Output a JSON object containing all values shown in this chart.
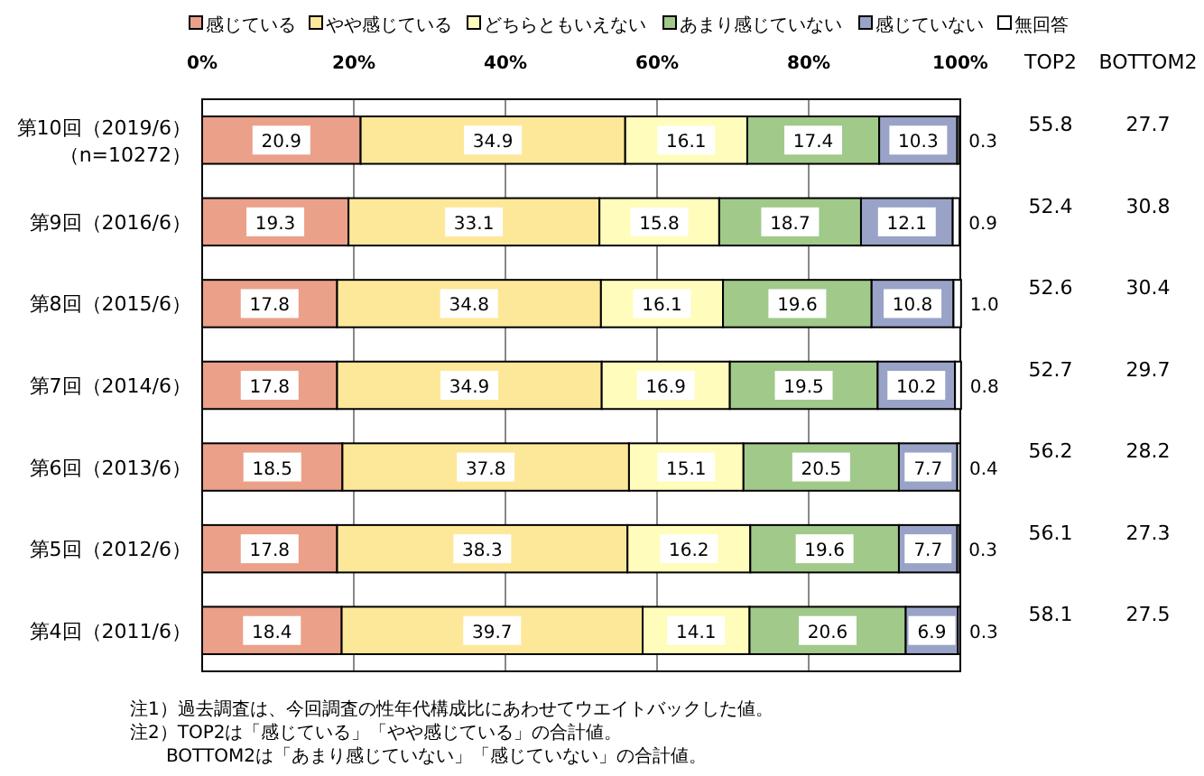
{
  "chart_data": {
    "type": "bar",
    "orientation": "horizontal",
    "stacked": true,
    "data_labels": true,
    "legend": "top",
    "grid": "x",
    "categories": [
      "第10回（2019/6）（n=10272）",
      "第9回（2016/6）",
      "第8回（2015/6）",
      "第7回（2014/6）",
      "第6回（2013/6）",
      "第5回（2012/6）",
      "第4回（2011/6）"
    ],
    "xlim": [
      0,
      100
    ],
    "xticks": [
      {
        "value": 0,
        "label": "0%"
      },
      {
        "value": 20,
        "label": "20%"
      },
      {
        "value": 40,
        "label": "40%"
      },
      {
        "value": 60,
        "label": "60%"
      },
      {
        "value": 80,
        "label": "80%"
      },
      {
        "value": 100,
        "label": "100%"
      }
    ],
    "series": [
      {
        "name": "感じている",
        "color": "#eba08a",
        "values": [
          20.9,
          19.3,
          17.8,
          17.8,
          18.5,
          17.8,
          18.4
        ]
      },
      {
        "name": "やや感じている",
        "color": "#fde89a",
        "values": [
          34.9,
          33.1,
          34.8,
          34.9,
          37.8,
          38.3,
          39.7
        ]
      },
      {
        "name": "どちらともいえない",
        "color": "#fffcbc",
        "values": [
          16.1,
          15.8,
          16.1,
          16.9,
          15.1,
          16.2,
          14.1
        ]
      },
      {
        "name": "あまり感じていない",
        "color": "#a0c98a",
        "values": [
          17.4,
          18.7,
          19.6,
          19.5,
          20.5,
          19.6,
          20.6
        ]
      },
      {
        "name": "感じていない",
        "color": "#99a3c7",
        "values": [
          10.3,
          12.1,
          10.8,
          10.2,
          7.7,
          7.7,
          6.9
        ]
      },
      {
        "name": "無回答",
        "color": "#ffffff",
        "values": [
          0.3,
          0.9,
          1.0,
          0.8,
          0.4,
          0.3,
          0.3
        ],
        "value_labels": [
          "0.3",
          "0.9",
          "1.0",
          "0.8",
          "0.4",
          "0.3",
          "0.3"
        ]
      }
    ],
    "annotations": [
      "TOP2",
      "BOTTOM2",
      "55.8",
      "27.7",
      "52.4",
      "30.8",
      "52.6",
      "30.4",
      "52.7",
      "29.7",
      "56.2",
      "28.2",
      "56.1",
      "27.3",
      "58.1",
      "27.5",
      "注1）過去調査は、今回調査の性年代構成比にあわせてウエイトバックした値。",
      "注2）TOP2は「感じている」「やや感じている」の合計値。",
      "　　BOTTOM2は「あまり感じていない」「感じていない」の合計値。"
    ]
  }
}
